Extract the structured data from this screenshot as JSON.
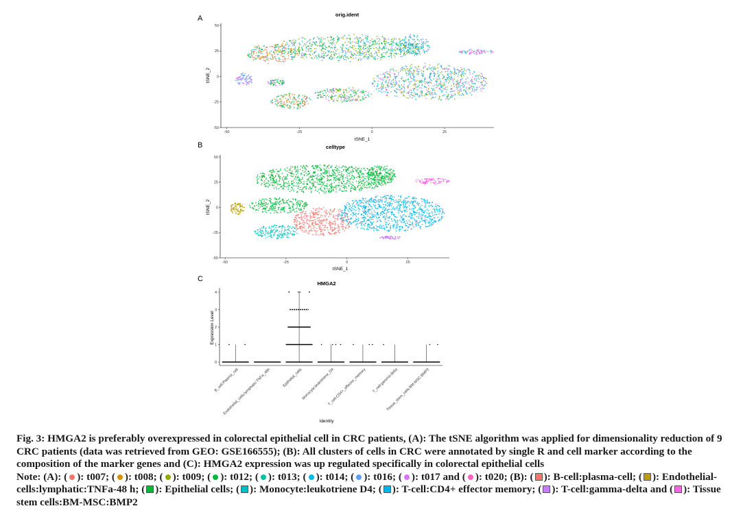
{
  "panels": {
    "a": "A",
    "b": "B",
    "c": "C"
  },
  "chart_data": [
    {
      "type": "scatter",
      "title": "orig.ident",
      "xlabel": "tSNE_1",
      "ylabel": "tSNE_2",
      "xlim": [
        -52,
        42
      ],
      "ylim": [
        -50,
        52
      ],
      "xticks": [
        "-50",
        "-25",
        "0",
        "25"
      ],
      "yticks": [
        "50",
        "25",
        "0",
        "-25",
        "-50"
      ],
      "legend": "none (listed in caption)",
      "series": [
        {
          "name": "t007",
          "color": "#F8766D"
        },
        {
          "name": "t008",
          "color": "#D39200"
        },
        {
          "name": "t009",
          "color": "#93AA00"
        },
        {
          "name": "t012",
          "color": "#00BA38"
        },
        {
          "name": "t013",
          "color": "#00C19F"
        },
        {
          "name": "t014",
          "color": "#00B9E3"
        },
        {
          "name": "t016",
          "color": "#619CFF"
        },
        {
          "name": "t017",
          "color": "#DB72FB"
        },
        {
          "name": "t020",
          "color": "#FF61C3"
        }
      ],
      "clusters": [
        {
          "cx": -8,
          "cy": 28,
          "rx": 26,
          "ry": 12,
          "mix": [
            "#00BA38",
            "#00C19F",
            "#93AA00",
            "#619CFF"
          ]
        },
        {
          "cx": 14,
          "cy": 30,
          "rx": 6,
          "ry": 10,
          "mix": [
            "#00C19F",
            "#619CFF"
          ]
        },
        {
          "cx": -34,
          "cy": 22,
          "rx": 9,
          "ry": 9,
          "mix": [
            "#D39200",
            "#F8766D",
            "#00C19F"
          ]
        },
        {
          "cx": 36,
          "cy": 24,
          "rx": 6,
          "ry": 2.5,
          "mix": [
            "#FF61C3",
            "#00B9E3",
            "#DB72FB"
          ]
        },
        {
          "cx": -44,
          "cy": -3,
          "rx": 3,
          "ry": 6,
          "mix": [
            "#619CFF",
            "#DB72FB"
          ]
        },
        {
          "cx": -28,
          "cy": -24,
          "rx": 7,
          "ry": 7,
          "mix": [
            "#00BA38",
            "#D39200",
            "#F8766D",
            "#00C19F"
          ]
        },
        {
          "cx": -10,
          "cy": -18,
          "rx": 10,
          "ry": 7,
          "mix": [
            "#00BA38",
            "#00C19F",
            "#93AA00",
            "#DB72FB"
          ]
        },
        {
          "cx": 20,
          "cy": -6,
          "rx": 20,
          "ry": 17,
          "mix": [
            "#DB72FB",
            "#619CFF",
            "#00B9E3",
            "#00C19F",
            "#93AA00"
          ]
        },
        {
          "cx": -33,
          "cy": -6,
          "rx": 3,
          "ry": 3,
          "mix": [
            "#DB72FB",
            "#00BA38"
          ]
        }
      ]
    },
    {
      "type": "scatter",
      "title": "celltype",
      "xlabel": "tSNE_1",
      "ylabel": "tSNE_2",
      "xlim": [
        -52,
        42
      ],
      "ylim": [
        -50,
        52
      ],
      "xticks": [
        "-50",
        "-25",
        "0",
        "25"
      ],
      "yticks": [
        "50",
        "25",
        "0",
        "-25",
        "-50"
      ],
      "legend": "none (listed in caption)",
      "series": [
        {
          "name": "B-cell:plasma-cell",
          "color": "#F8766D"
        },
        {
          "name": "Endothelial-cells:lymphatic:TNFa-48 h",
          "color": "#B79F00"
        },
        {
          "name": "Epithelial cells",
          "color": "#00BA38"
        },
        {
          "name": "Monocyte:leukotriene D4",
          "color": "#00BFC4"
        },
        {
          "name": "T-cell:CD4+ effector memory",
          "color": "#00B4EF"
        },
        {
          "name": "T-cell:gamma-delta",
          "color": "#C77CFF"
        },
        {
          "name": "Tissue stem cells:BM-MSC:BMP2",
          "color": "#F564E3"
        }
      ],
      "clusters": [
        {
          "cx": -10,
          "cy": 28,
          "rx": 28,
          "ry": 14,
          "mix": [
            "#00BA38"
          ]
        },
        {
          "cx": 14,
          "cy": 32,
          "rx": 6,
          "ry": 10,
          "mix": [
            "#00BA38"
          ]
        },
        {
          "cx": -28,
          "cy": 2,
          "rx": 12,
          "ry": 8,
          "mix": [
            "#00BA38"
          ]
        },
        {
          "cx": -29,
          "cy": -24,
          "rx": 9,
          "ry": 7,
          "mix": [
            "#00BFC4"
          ]
        },
        {
          "cx": -10,
          "cy": -14,
          "rx": 12,
          "ry": 14,
          "mix": [
            "#F8766D"
          ]
        },
        {
          "cx": 18,
          "cy": -6,
          "rx": 22,
          "ry": 18,
          "mix": [
            "#00B4EF"
          ]
        },
        {
          "cx": 35,
          "cy": 26,
          "rx": 7,
          "ry": 3,
          "mix": [
            "#F564E3"
          ]
        },
        {
          "cx": -45,
          "cy": -1,
          "rx": 3,
          "ry": 6,
          "mix": [
            "#B79F00"
          ]
        },
        {
          "cx": 18,
          "cy": -30,
          "rx": 5,
          "ry": 1.5,
          "mix": [
            "#C77CFF"
          ]
        }
      ]
    },
    {
      "type": "violin",
      "title": "HMGA2",
      "xlabel": "Identity",
      "ylabel": "Expression Level",
      "ylim": [
        0,
        4
      ],
      "yticks": [
        "0",
        "1",
        "2",
        "3",
        "4"
      ],
      "categories": [
        "B_cell:Plasma_cell",
        "Endothelial_cells:lymphatic:TNFa_48h",
        "Epithelial_cells",
        "Monocyte:leukotriene_D4",
        "T_cell:CD4+_effector_memory",
        "T_cell:gamma-delta",
        "Tissue_stem_cells:BM-MSC:BMP2"
      ],
      "max_expression": [
        1,
        0,
        4,
        1,
        1,
        1,
        1
      ],
      "expressing_levels": [
        [
          1
        ],
        [],
        [
          1,
          2,
          3,
          4
        ],
        [
          1
        ],
        [
          1
        ],
        [
          1
        ],
        [
          1
        ]
      ]
    }
  ],
  "caption": {
    "fig": "Fig. 3:",
    "text1": " HMGA2 is preferably overexpressed in colorectal epithelial cell in CRC patients, (A): The tSNE algorithm was applied for dimensionality reduction of 9 CRC patients (data was retrieved from GEO: GSE166555); (B): All clusters of cells in CRC were annotated by single R and cell marker according to the composition of the marker genes and (C): HMGA2 expression was up regulated specifically in colorectal epithelial cells",
    "note": "Note: (A): (",
    "a_items": [
      {
        "c": "#F8766D",
        "t": "): t007; ("
      },
      {
        "c": "#D39200",
        "t": "): t008; ("
      },
      {
        "c": "#93AA00",
        "t": "): t009; ("
      },
      {
        "c": "#00BA38",
        "t": "): t012; ("
      },
      {
        "c": "#00C19F",
        "t": "): t013; ("
      },
      {
        "c": "#00B9E3",
        "t": "): t014; ("
      },
      {
        "c": "#619CFF",
        "t": "): t016; ("
      },
      {
        "c": "#DB72FB",
        "t": "): t017 and ("
      },
      {
        "c": "#FF61C3",
        "t": "): t020; (B): ("
      }
    ],
    "b_items": [
      {
        "c": "#F8766D",
        "t": "): B-cell:plasma-cell; ("
      },
      {
        "c": "#B79F00",
        "t": "): Endothelial-cells:lymphatic:TNFa-48 h; ("
      },
      {
        "c": "#00BA38",
        "t": "): Epithelial cells; ("
      },
      {
        "c": "#00BFC4",
        "t": "): Monocyte:leukotriene D4; ("
      },
      {
        "c": "#00B4EF",
        "t": "): T-cell:CD4+ effector memory; ("
      },
      {
        "c": "#C77CFF",
        "t": "): T-cell:gamma-delta and ("
      },
      {
        "c": "#F564E3",
        "t": "): Tissue stem cells:BM-MSC:BMP2"
      }
    ]
  }
}
